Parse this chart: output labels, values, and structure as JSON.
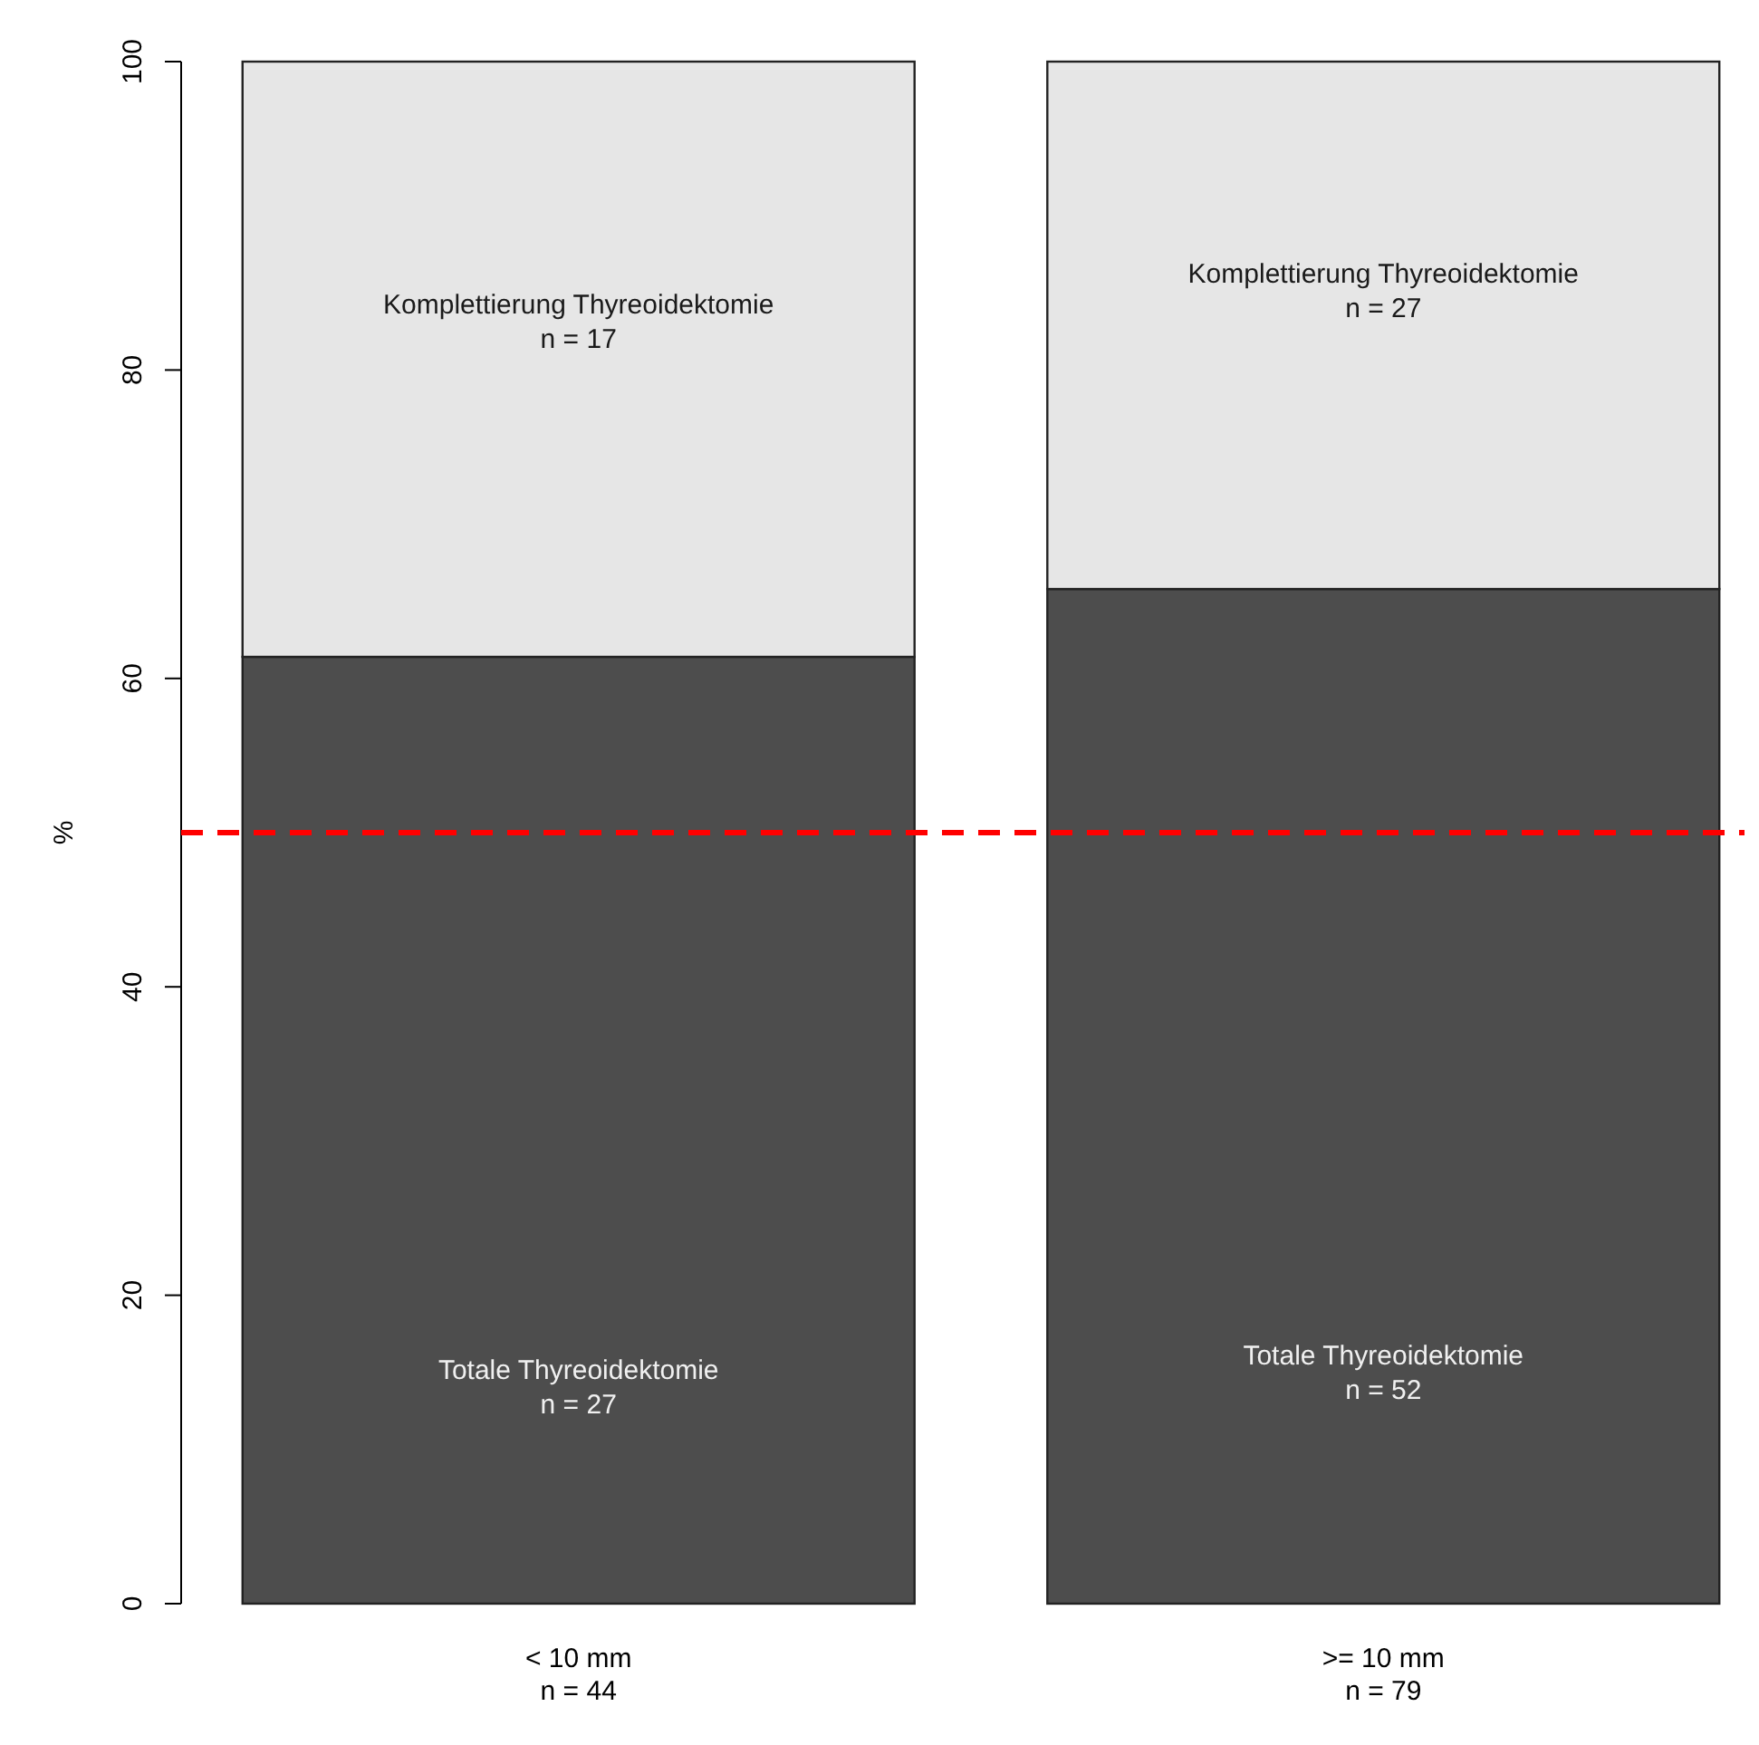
{
  "chart_data": {
    "type": "bar",
    "stacked": true,
    "ylabel": "%",
    "categories": [
      "< 10 mm\nn = 44",
      ">= 10 mm\nn = 79"
    ],
    "series": [
      {
        "color": "#4d4d4d",
        "values": [
          61.4,
          65.8
        ]
      },
      {
        "color": "#e6e6e6",
        "values": [
          38.6,
          34.2
        ]
      }
    ],
    "annotations": [
      "Totale Thyreoidektomie\nn = 27",
      "Totale Thyreoidektomie\nn = 52",
      "Komplettierung Thyreoidektomie\nn = 17",
      "Komplettierung Thyreoidektomie\nn = 27"
    ],
    "ylim": [
      0,
      100
    ],
    "yticks": [
      0,
      20,
      40,
      60,
      80,
      100
    ],
    "ref_lines": [
      {
        "axis": "y",
        "value": 50,
        "color": "#ff0000",
        "line_style": "dashed"
      }
    ]
  }
}
